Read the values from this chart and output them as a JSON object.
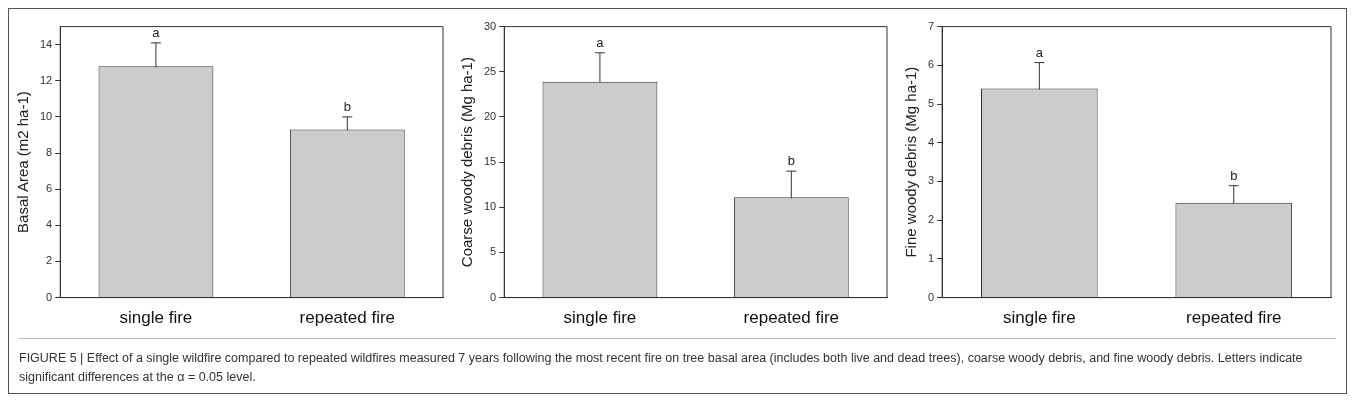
{
  "chart_data": [
    {
      "type": "bar",
      "ylabel": "Basal Area (m2 ha-1)",
      "categories": [
        "single fire",
        "repeated fire"
      ],
      "values": [
        12.8,
        9.3
      ],
      "errors": [
        1.3,
        0.7
      ],
      "color": "#cccccc",
      "ylim": [
        0,
        15
      ],
      "yticks": [
        0,
        2,
        4,
        6,
        8,
        10,
        12,
        14
      ],
      "grid": false,
      "legend": false,
      "annotations": [
        {
          "text": "a",
          "x": "single fire",
          "y": 14.1
        },
        {
          "text": "b",
          "x": "repeated fire",
          "y": 10.0
        }
      ]
    },
    {
      "type": "bar",
      "ylabel": "Coarse woody debris (Mg ha-1)",
      "categories": [
        "single fire",
        "repeated fire"
      ],
      "values": [
        23.9,
        11.1
      ],
      "errors": [
        3.2,
        2.9
      ],
      "color": "#cccccc",
      "ylim": [
        0,
        30
      ],
      "yticks": [
        0,
        5,
        10,
        15,
        20,
        25,
        30
      ],
      "grid": false,
      "legend": false,
      "annotations": [
        {
          "text": "a",
          "x": "single fire",
          "y": 27.1
        },
        {
          "text": "b",
          "x": "repeated fire",
          "y": 14.0
        }
      ]
    },
    {
      "type": "bar",
      "ylabel": "Fine woody debris (Mg ha-1)",
      "categories": [
        "single fire",
        "repeated fire"
      ],
      "values": [
        5.4,
        2.45
      ],
      "errors": [
        0.67,
        0.44
      ],
      "color": "#cccccc",
      "ylim": [
        0,
        7
      ],
      "yticks": [
        0,
        1,
        2,
        3,
        4,
        5,
        6,
        7
      ],
      "grid": false,
      "legend": false,
      "annotations": [
        {
          "text": "a",
          "x": "single fire",
          "y": 6.07
        },
        {
          "text": "b",
          "x": "repeated fire",
          "y": 2.89
        },
        "FIGURE 5 | Effect of a single wildfire compared to repeated wildfires measured 7 years following the most recent fire on tree basal area (includes both live and dead trees), coarse woody debris, and fine woody debris. Letters indicate significant differences at the α = 0.05 level."
      ]
    }
  ]
}
